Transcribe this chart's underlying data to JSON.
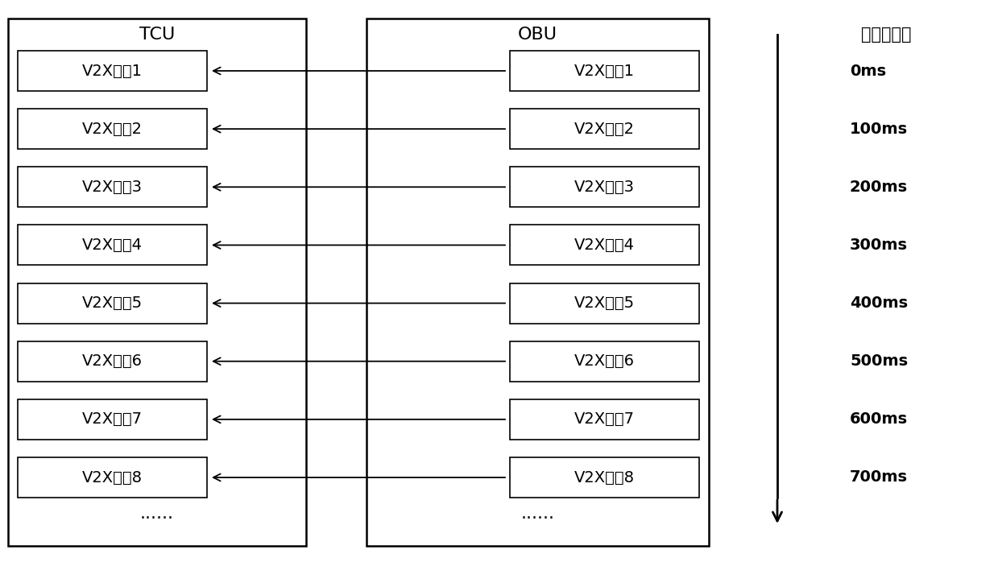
{
  "tcu_label": "TCU",
  "obu_label": "OBU",
  "time_label": "周期时间点",
  "messages": [
    "V2X消息1",
    "V2X消息2",
    "V2X消息3",
    "V2X消息4",
    "V2X消息5",
    "V2X消息6",
    "V2X消息7",
    "V2X消息8"
  ],
  "time_labels": [
    "0ms",
    "100ms",
    "200ms",
    "300ms",
    "400ms",
    "500ms",
    "600ms",
    "700ms"
  ],
  "ellipsis_tcu": "......",
  "ellipsis_obu": "......",
  "bg_color": "#ffffff",
  "box_color": "#ffffff",
  "line_color": "#000000",
  "text_color": "#000000",
  "font_size": 14,
  "label_font_size": 16,
  "time_font_size": 14,
  "time_label_font_size": 15
}
